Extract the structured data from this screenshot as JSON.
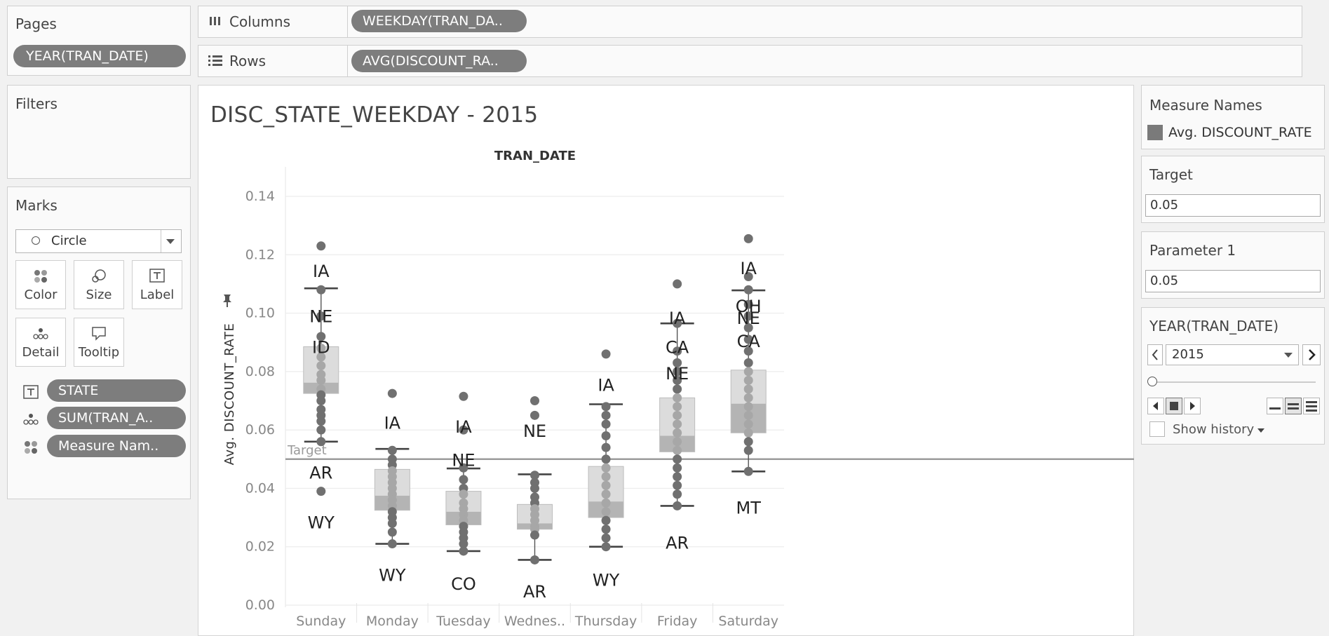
{
  "pages_panel": {
    "title": "Pages",
    "pill": "YEAR(TRAN_DATE)"
  },
  "columns_shelf": {
    "label": "Columns",
    "pill": "WEEKDAY(TRAN_DA.."
  },
  "rows_shelf": {
    "label": "Rows",
    "pill": "AVG(DISCOUNT_RA.."
  },
  "filters_panel": {
    "title": "Filters"
  },
  "marks_panel": {
    "title": "Marks",
    "mark_type": "Circle",
    "buttons": {
      "color": "Color",
      "size": "Size",
      "label": "Label",
      "detail": "Detail",
      "tooltip": "Tooltip"
    },
    "fields": {
      "label_field": "STATE",
      "detail_field": "SUM(TRAN_A..",
      "color_field": "Measure Nam.."
    }
  },
  "worksheet": {
    "title": "DISC_STATE_WEEKDAY - 2015",
    "reference_line_label": "Target"
  },
  "legend": {
    "title": "Measure Names",
    "item": "Avg. DISCOUNT_RATE",
    "item_color": "#7a7a7a"
  },
  "target_param": {
    "title": "Target",
    "value": "0.05"
  },
  "param1": {
    "title": "Parameter 1",
    "value": "0.05"
  },
  "year_filter": {
    "title": "YEAR(TRAN_DATE)",
    "value": "2015",
    "show_history": "Show history"
  },
  "chart_data": {
    "type": "box-plot",
    "title": "TRAN_DATE",
    "ylabel": "Avg. DISCOUNT_RATE",
    "ylim": [
      0,
      0.14
    ],
    "yticks": [
      "0.14",
      "0.12",
      "0.10",
      "0.08",
      "0.06",
      "0.04",
      "0.02",
      "0.00"
    ],
    "ytick_values": [
      0.14,
      0.12,
      0.1,
      0.08,
      0.06,
      0.04,
      0.02,
      0.0
    ],
    "categories": [
      "Sunday",
      "Monday",
      "Tuesday",
      "Wednes..",
      "Thursday",
      "Friday",
      "Saturday"
    ],
    "reference_line": 0.05,
    "boxes": [
      {
        "wlo": 0.056,
        "q1": 0.0725,
        "med": 0.0762,
        "q3": 0.0885,
        "whi": 0.1085
      },
      {
        "wlo": 0.021,
        "q1": 0.0325,
        "med": 0.0375,
        "q3": 0.0465,
        "whi": 0.0535
      },
      {
        "wlo": 0.0185,
        "q1": 0.0275,
        "med": 0.032,
        "q3": 0.039,
        "whi": 0.0468
      },
      {
        "wlo": 0.0155,
        "q1": 0.026,
        "med": 0.028,
        "q3": 0.0345,
        "whi": 0.0448
      },
      {
        "wlo": 0.02,
        "q1": 0.03,
        "med": 0.0355,
        "q3": 0.0475,
        "whi": 0.0688
      },
      {
        "wlo": 0.034,
        "q1": 0.0525,
        "med": 0.058,
        "q3": 0.071,
        "whi": 0.0965
      },
      {
        "wlo": 0.0458,
        "q1": 0.059,
        "med": 0.069,
        "q3": 0.0805,
        "whi": 0.1078
      }
    ],
    "points": [
      [
        0.123,
        0.108,
        0.099,
        0.092,
        0.088,
        0.085,
        0.082,
        0.079,
        0.077,
        0.074,
        0.072,
        0.07,
        0.067,
        0.065,
        0.063,
        0.06,
        0.056,
        0.039
      ],
      [
        0.0725,
        0.053,
        0.05,
        0.048,
        0.046,
        0.044,
        0.042,
        0.04,
        0.038,
        0.036,
        0.034,
        0.032,
        0.03,
        0.028,
        0.025,
        0.021
      ],
      [
        0.0715,
        0.06,
        0.047,
        0.043,
        0.04,
        0.038,
        0.035,
        0.033,
        0.031,
        0.029,
        0.027,
        0.025,
        0.023,
        0.021,
        0.0185
      ],
      [
        0.07,
        0.065,
        0.0445,
        0.042,
        0.04,
        0.037,
        0.035,
        0.033,
        0.031,
        0.029,
        0.027,
        0.026,
        0.024,
        0.0155
      ],
      [
        0.086,
        0.068,
        0.065,
        0.062,
        0.058,
        0.054,
        0.05,
        0.047,
        0.044,
        0.041,
        0.038,
        0.035,
        0.032,
        0.029,
        0.026,
        0.023,
        0.02
      ],
      [
        0.11,
        0.0965,
        0.087,
        0.083,
        0.08,
        0.077,
        0.074,
        0.071,
        0.068,
        0.065,
        0.062,
        0.059,
        0.056,
        0.053,
        0.05,
        0.047,
        0.044,
        0.041,
        0.038,
        0.034
      ],
      [
        0.1255,
        0.1125,
        0.108,
        0.103,
        0.099,
        0.095,
        0.091,
        0.087,
        0.083,
        0.08,
        0.077,
        0.074,
        0.071,
        0.068,
        0.065,
        0.062,
        0.059,
        0.056,
        0.053,
        0.0458
      ]
    ],
    "labels": [
      [
        {
          "t": "IA",
          "v": 0.1145
        },
        {
          "t": "NE",
          "v": 0.099
        },
        {
          "t": "ID",
          "v": 0.0885
        },
        {
          "t": "AR",
          "v": 0.0455
        },
        {
          "t": "WY",
          "v": 0.0285
        }
      ],
      [
        {
          "t": "IA",
          "v": 0.0625
        },
        {
          "t": "WY",
          "v": 0.0105
        }
      ],
      [
        {
          "t": "IA",
          "v": 0.0612
        },
        {
          "t": "NE",
          "v": 0.0498
        },
        {
          "t": "CO",
          "v": 0.0075
        }
      ],
      [
        {
          "t": "NE",
          "v": 0.0598
        },
        {
          "t": "AR",
          "v": 0.0048
        }
      ],
      [
        {
          "t": "IA",
          "v": 0.0755
        },
        {
          "t": "WY",
          "v": 0.0088
        }
      ],
      [
        {
          "t": "IA",
          "v": 0.0985
        },
        {
          "t": "CA",
          "v": 0.0885
        },
        {
          "t": "NE",
          "v": 0.0795
        },
        {
          "t": "AR",
          "v": 0.0215
        }
      ],
      [
        {
          "t": "IA",
          "v": 0.1155
        },
        {
          "t": "OH",
          "v": 0.1025
        },
        {
          "t": "NE",
          "v": 0.0985
        },
        {
          "t": "CA",
          "v": 0.0905
        },
        {
          "t": "MT",
          "v": 0.0335
        }
      ]
    ]
  }
}
